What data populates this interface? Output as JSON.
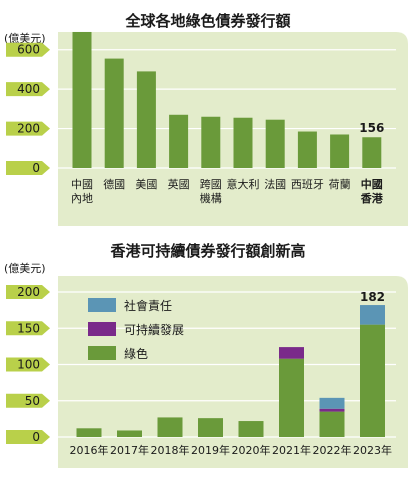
{
  "chart_data": [
    {
      "type": "bar",
      "title": "全球各地綠色債券發行額",
      "ylabel": "(億美元)",
      "ylim": [
        0,
        700
      ],
      "yticks": [
        0,
        200,
        400,
        600
      ],
      "categories": [
        "中國\n內地",
        "德國",
        "美國",
        "英國",
        "跨國\n機構",
        "意大利",
        "法國",
        "西班牙",
        "荷蘭",
        "中國\n香港"
      ],
      "values": [
        690,
        555,
        490,
        270,
        260,
        255,
        245,
        185,
        170,
        156
      ],
      "data_labels": [
        {
          "index": 9,
          "text": "156"
        }
      ],
      "highlight_index": 9,
      "grid": true,
      "colors": {
        "bar": "#6a9a3a",
        "panel": "#e3eccb",
        "tick_tab": "#b9d04a"
      }
    },
    {
      "type": "bar",
      "stacked": true,
      "title": "香港可持續債券發行額創新高",
      "ylabel": "(億美元)",
      "ylim": [
        0,
        200
      ],
      "yticks": [
        0,
        50,
        100,
        150,
        200
      ],
      "categories": [
        "2016年",
        "2017年",
        "2018年",
        "2019年",
        "2020年",
        "2021年",
        "2022年",
        "2023年"
      ],
      "series": [
        {
          "name": "綠色",
          "color": "#6a9a3a",
          "values": [
            12,
            9,
            27,
            26,
            22,
            108,
            35,
            155
          ]
        },
        {
          "name": "可持續發展",
          "color": "#7a2a8a",
          "values": [
            0,
            0,
            0,
            0,
            0,
            16,
            4,
            0
          ]
        },
        {
          "name": "社會責任",
          "color": "#5b95b5",
          "values": [
            0,
            0,
            0,
            0,
            0,
            0,
            15,
            27
          ]
        }
      ],
      "legend_order": [
        "社會責任",
        "可持續發展",
        "綠色"
      ],
      "legend_position": "top-left",
      "data_labels": [
        {
          "index": 7,
          "text": "182"
        }
      ],
      "grid": true,
      "colors": {
        "panel": "#e3eccb",
        "tick_tab": "#b9d04a"
      }
    }
  ]
}
